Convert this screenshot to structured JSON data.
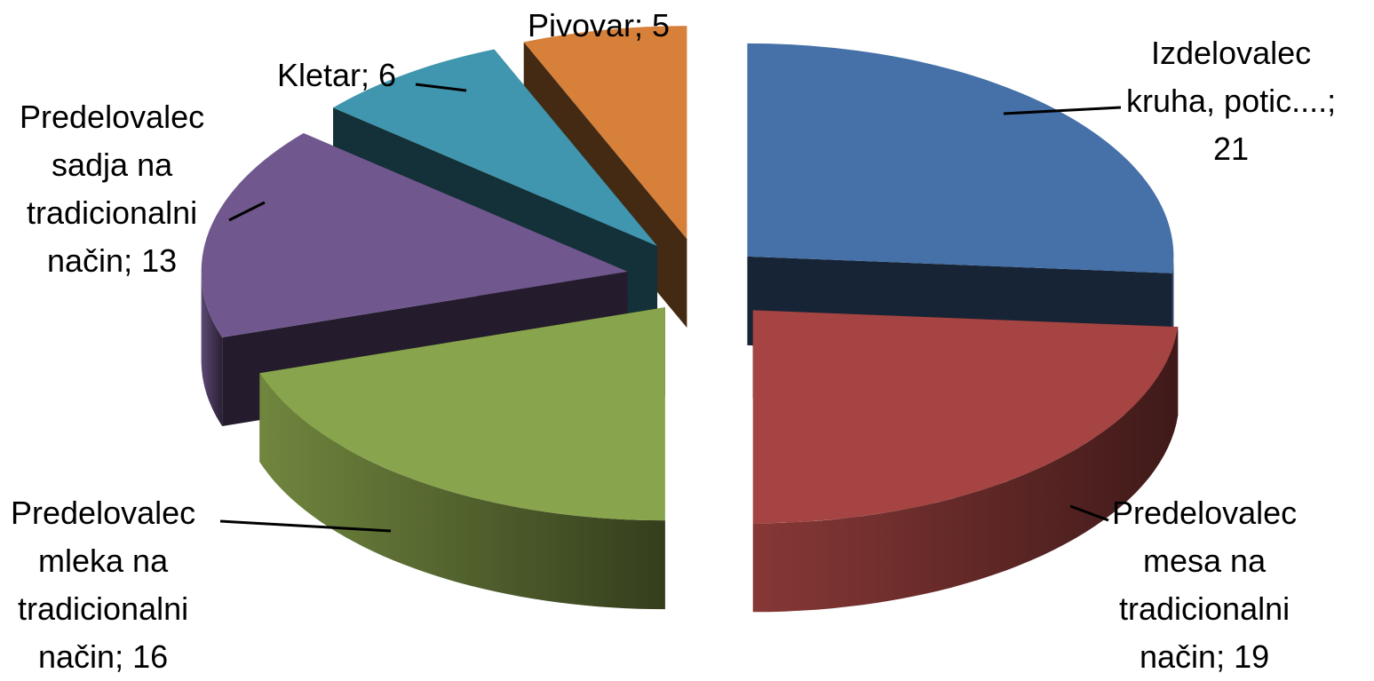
{
  "chart_data": {
    "type": "pie",
    "style": "3d-exploded",
    "legend": "none",
    "slices": [
      {
        "name": "Izdelovalec kruha, potic....",
        "value": 21,
        "color": "#4570A8",
        "label_lines": [
          "Izdelovalec",
          "kruha, potic....;",
          "21"
        ]
      },
      {
        "name": "Predelovalec mesa na tradicionalni način",
        "value": 19,
        "color": "#A54442",
        "label_lines": [
          "Predelovalec",
          "mesa na",
          "tradicionalni",
          "način; 19"
        ]
      },
      {
        "name": "Predelovalec mleka na tradicionalni način",
        "value": 16,
        "color": "#88A44C",
        "label_lines": [
          "Predelovalec",
          "mleka na",
          "tradicionalni",
          "način; 16"
        ]
      },
      {
        "name": "Predelovalec sadja na tradicionalni način",
        "value": 13,
        "color": "#70588E",
        "label_lines": [
          "Predelovalec",
          "sadja na",
          "tradicionalni",
          "način; 13"
        ]
      },
      {
        "name": "Kletar",
        "value": 6,
        "color": "#3F96AE",
        "label_lines": [
          "Kletar; 6"
        ]
      },
      {
        "name": "Pivovar",
        "value": 5,
        "color": "#D6803A",
        "label_lines": [
          "Pivovar; 5"
        ]
      }
    ]
  }
}
